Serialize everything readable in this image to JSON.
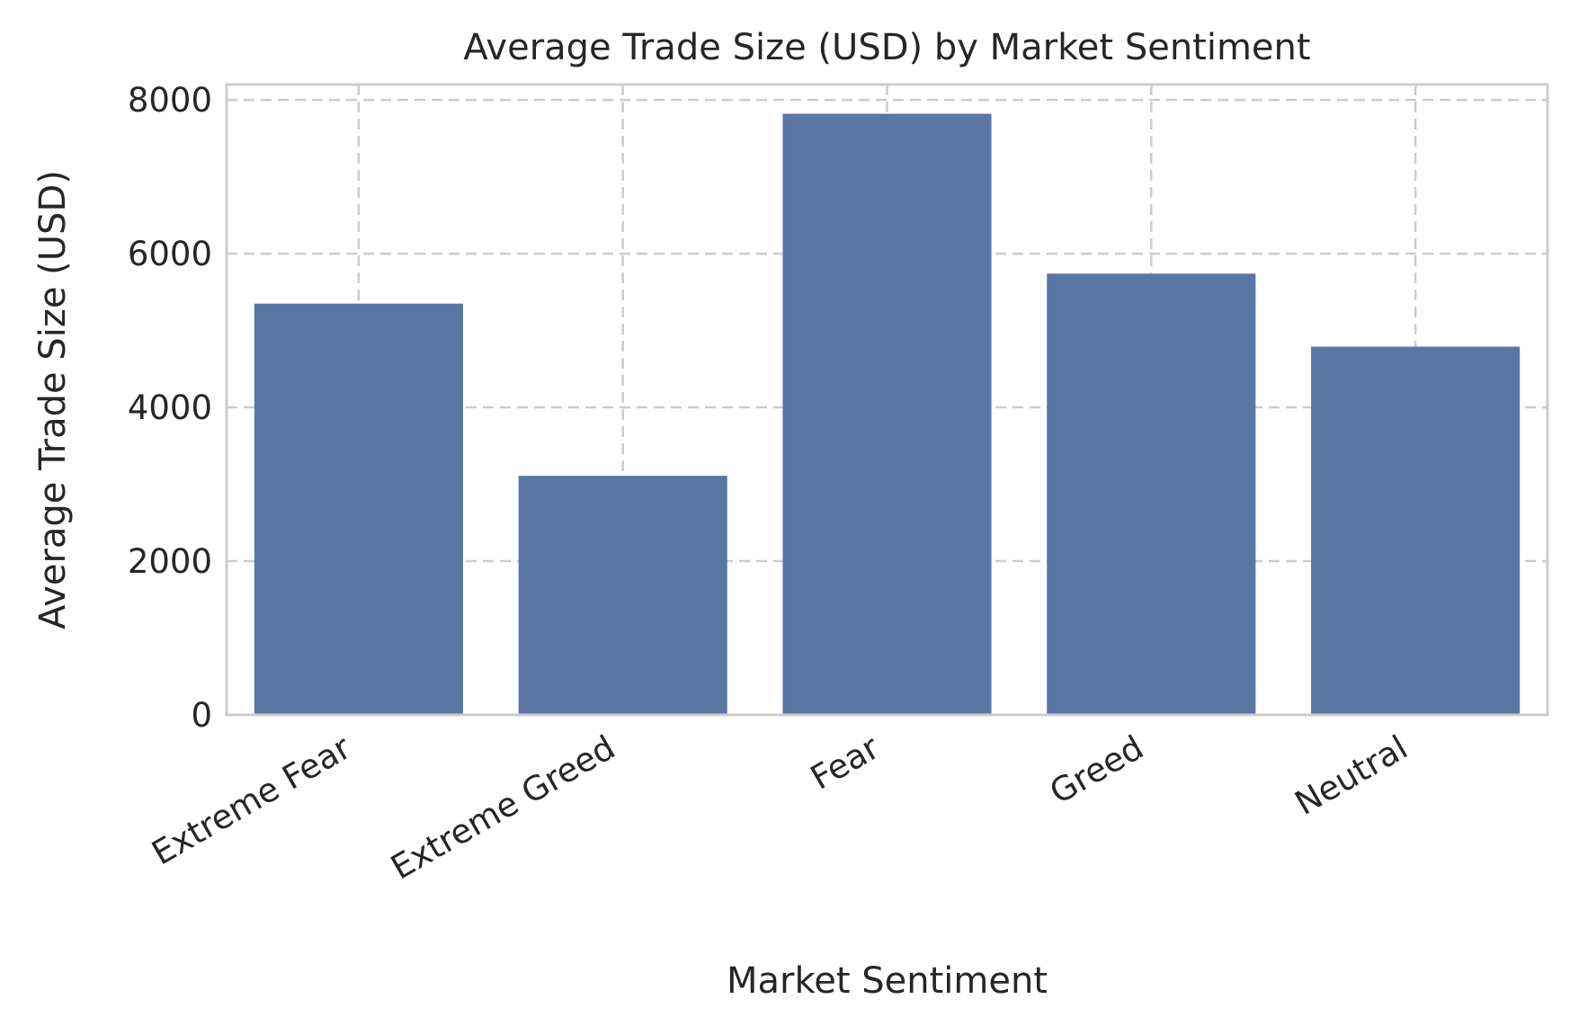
{
  "chart_data": {
    "type": "bar",
    "title": "Average Trade Size (USD) by Market Sentiment",
    "xlabel": "Market Sentiment",
    "ylabel": "Average Trade Size (USD)",
    "categories": [
      "Extreme Fear",
      "Extreme Greed",
      "Fear",
      "Greed",
      "Neutral"
    ],
    "values": [
      5350,
      3110,
      7820,
      5740,
      4790
    ],
    "ylim": [
      0,
      8200
    ],
    "yticks": [
      0,
      2000,
      4000,
      6000,
      8000
    ],
    "grid": true,
    "legend": "none",
    "bar_color": "#5a76a5",
    "grid_color": "#cccccc",
    "text_color": "#262626"
  }
}
